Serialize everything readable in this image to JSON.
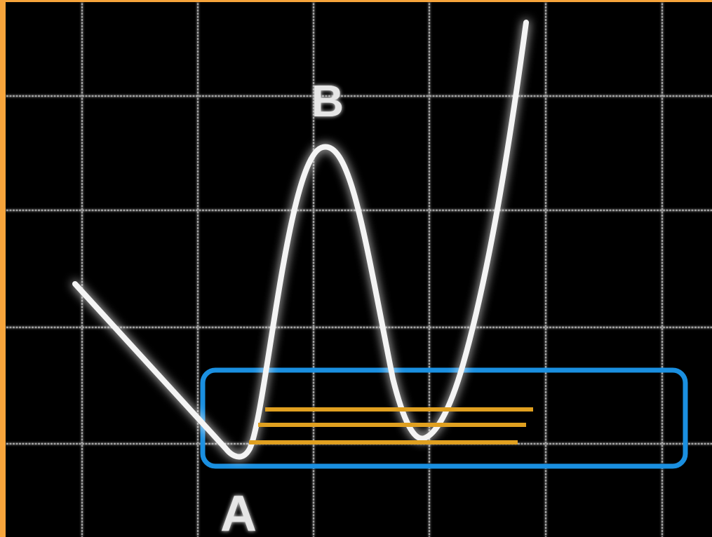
{
  "diagram": {
    "labels": {
      "point_a": "A",
      "point_b": "B"
    },
    "colors": {
      "frame_border": "#F6A43B",
      "background": "#000000",
      "grid": "#C8C8C8",
      "curve": "#F4F4F4",
      "support_zone": "#1A8FE0",
      "support_lines": "#E0A020",
      "label": "#E6E6E6"
    },
    "icons": {
      "support_zone": "rounded-rectangle-outline",
      "support_lines": "horizontal-line"
    },
    "support_line_count": 3
  }
}
